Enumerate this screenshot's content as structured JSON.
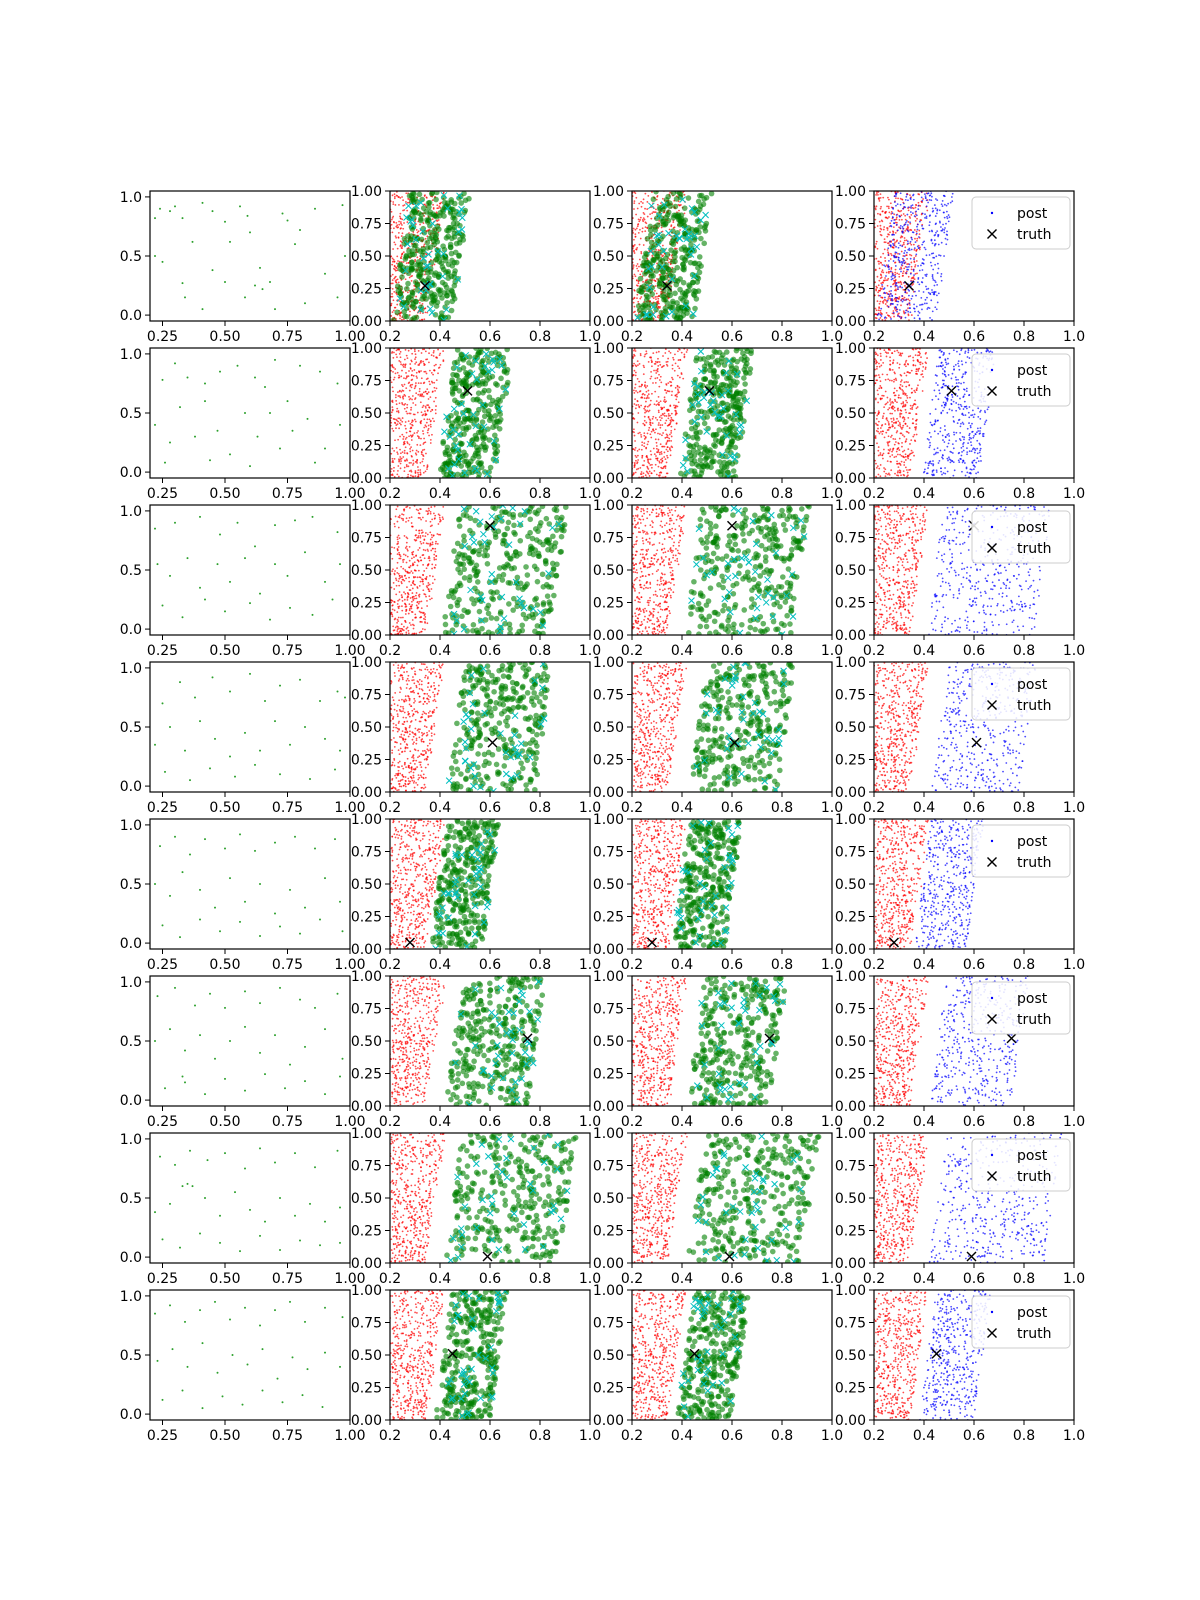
{
  "figure": {
    "grid": "8x4",
    "colors": {
      "prior": "#2ca02c",
      "red": "#ff0000",
      "green": "#008000",
      "cyan": "#00bfbf",
      "blue": "#0000ff",
      "truth": "#000000"
    }
  },
  "legend": {
    "post": "post",
    "truth": "truth"
  },
  "chart_data": [
    {
      "row": 0,
      "truth": [
        0.34,
        0.27
      ],
      "band": [
        0.21,
        0.45
      ],
      "prior_points": [
        [
          0.22,
          0.82
        ],
        [
          0.24,
          0.9
        ],
        [
          0.28,
          0.88
        ],
        [
          0.3,
          0.92
        ],
        [
          0.33,
          0.82
        ],
        [
          0.41,
          0.95
        ],
        [
          0.45,
          0.88
        ],
        [
          0.5,
          0.79
        ],
        [
          0.56,
          0.92
        ],
        [
          0.59,
          0.84
        ],
        [
          0.22,
          0.5
        ],
        [
          0.25,
          0.45
        ],
        [
          0.34,
          0.15
        ],
        [
          0.33,
          0.27
        ],
        [
          0.41,
          0.05
        ],
        [
          0.45,
          0.38
        ],
        [
          0.5,
          0.28
        ],
        [
          0.52,
          0.62
        ],
        [
          0.58,
          0.15
        ],
        [
          0.62,
          0.25
        ],
        [
          0.65,
          0.22
        ],
        [
          0.68,
          0.28
        ],
        [
          0.7,
          0.05
        ],
        [
          0.73,
          0.86
        ],
        [
          0.75,
          0.8
        ],
        [
          0.78,
          0.6
        ],
        [
          0.82,
          0.1
        ],
        [
          0.86,
          0.9
        ],
        [
          0.9,
          0.35
        ],
        [
          0.95,
          0.15
        ],
        [
          0.98,
          0.5
        ],
        [
          0.64,
          0.4
        ],
        [
          0.37,
          0.62
        ],
        [
          0.8,
          0.72
        ],
        [
          0.97,
          0.93
        ],
        [
          0.6,
          0.7
        ]
      ]
    },
    {
      "row": 1,
      "truth": [
        0.51,
        0.67
      ],
      "band": [
        0.39,
        0.62
      ],
      "prior_points": [
        [
          0.25,
          0.78
        ],
        [
          0.3,
          0.92
        ],
        [
          0.35,
          0.8
        ],
        [
          0.42,
          0.75
        ],
        [
          0.48,
          0.85
        ],
        [
          0.55,
          0.9
        ],
        [
          0.62,
          0.8
        ],
        [
          0.66,
          0.72
        ],
        [
          0.7,
          0.95
        ],
        [
          0.75,
          0.6
        ],
        [
          0.8,
          0.9
        ],
        [
          0.88,
          0.85
        ],
        [
          0.95,
          0.75
        ],
        [
          0.22,
          0.4
        ],
        [
          0.28,
          0.25
        ],
        [
          0.32,
          0.55
        ],
        [
          0.38,
          0.3
        ],
        [
          0.42,
          0.6
        ],
        [
          0.47,
          0.35
        ],
        [
          0.52,
          0.15
        ],
        [
          0.58,
          0.5
        ],
        [
          0.63,
          0.3
        ],
        [
          0.68,
          0.5
        ],
        [
          0.72,
          0.2
        ],
        [
          0.77,
          0.35
        ],
        [
          0.83,
          0.45
        ],
        [
          0.9,
          0.2
        ],
        [
          0.96,
          0.4
        ],
        [
          0.26,
          0.08
        ],
        [
          0.44,
          0.1
        ],
        [
          0.6,
          0.05
        ],
        [
          0.86,
          0.08
        ]
      ]
    },
    {
      "row": 2,
      "truth": [
        0.6,
        0.84
      ],
      "band": [
        0.41,
        0.84
      ],
      "prior_points": [
        [
          0.22,
          0.85
        ],
        [
          0.3,
          0.9
        ],
        [
          0.4,
          0.95
        ],
        [
          0.48,
          0.8
        ],
        [
          0.55,
          0.9
        ],
        [
          0.62,
          0.7
        ],
        [
          0.7,
          0.88
        ],
        [
          0.78,
          0.92
        ],
        [
          0.85,
          0.95
        ],
        [
          0.95,
          0.82
        ],
        [
          0.23,
          0.55
        ],
        [
          0.28,
          0.45
        ],
        [
          0.35,
          0.6
        ],
        [
          0.4,
          0.35
        ],
        [
          0.47,
          0.55
        ],
        [
          0.52,
          0.4
        ],
        [
          0.58,
          0.6
        ],
        [
          0.64,
          0.3
        ],
        [
          0.7,
          0.55
        ],
        [
          0.75,
          0.45
        ],
        [
          0.82,
          0.65
        ],
        [
          0.9,
          0.4
        ],
        [
          0.96,
          0.55
        ],
        [
          0.25,
          0.2
        ],
        [
          0.33,
          0.1
        ],
        [
          0.42,
          0.25
        ],
        [
          0.5,
          0.15
        ],
        [
          0.6,
          0.22
        ],
        [
          0.68,
          0.08
        ],
        [
          0.76,
          0.18
        ],
        [
          0.85,
          0.12
        ],
        [
          0.93,
          0.25
        ]
      ]
    },
    {
      "row": 3,
      "truth": [
        0.61,
        0.38
      ],
      "band": [
        0.43,
        0.78
      ],
      "prior_points": [
        [
          0.25,
          0.7
        ],
        [
          0.32,
          0.88
        ],
        [
          0.38,
          0.75
        ],
        [
          0.45,
          0.92
        ],
        [
          0.52,
          0.8
        ],
        [
          0.6,
          0.95
        ],
        [
          0.66,
          0.72
        ],
        [
          0.72,
          0.85
        ],
        [
          0.8,
          0.9
        ],
        [
          0.88,
          0.72
        ],
        [
          0.95,
          0.8
        ],
        [
          0.98,
          0.75
        ],
        [
          0.22,
          0.35
        ],
        [
          0.28,
          0.5
        ],
        [
          0.34,
          0.3
        ],
        [
          0.4,
          0.55
        ],
        [
          0.46,
          0.4
        ],
        [
          0.52,
          0.25
        ],
        [
          0.58,
          0.45
        ],
        [
          0.64,
          0.3
        ],
        [
          0.7,
          0.55
        ],
        [
          0.76,
          0.35
        ],
        [
          0.82,
          0.5
        ],
        [
          0.9,
          0.4
        ],
        [
          0.96,
          0.3
        ],
        [
          0.26,
          0.12
        ],
        [
          0.36,
          0.05
        ],
        [
          0.44,
          0.15
        ],
        [
          0.54,
          0.08
        ],
        [
          0.62,
          0.18
        ],
        [
          0.72,
          0.1
        ],
        [
          0.84,
          0.06
        ],
        [
          0.94,
          0.14
        ]
      ]
    },
    {
      "row": 4,
      "truth": [
        0.28,
        0.05
      ],
      "band": [
        0.36,
        0.57
      ],
      "prior_points": [
        [
          0.24,
          0.82
        ],
        [
          0.3,
          0.9
        ],
        [
          0.36,
          0.75
        ],
        [
          0.42,
          0.88
        ],
        [
          0.5,
          0.8
        ],
        [
          0.56,
          0.92
        ],
        [
          0.62,
          0.78
        ],
        [
          0.7,
          0.85
        ],
        [
          0.78,
          0.9
        ],
        [
          0.86,
          0.8
        ],
        [
          0.94,
          0.88
        ],
        [
          0.22,
          0.5
        ],
        [
          0.28,
          0.4
        ],
        [
          0.33,
          0.6
        ],
        [
          0.4,
          0.45
        ],
        [
          0.46,
          0.3
        ],
        [
          0.52,
          0.55
        ],
        [
          0.58,
          0.35
        ],
        [
          0.64,
          0.5
        ],
        [
          0.7,
          0.25
        ],
        [
          0.76,
          0.45
        ],
        [
          0.82,
          0.3
        ],
        [
          0.9,
          0.55
        ],
        [
          0.96,
          0.35
        ],
        [
          0.25,
          0.15
        ],
        [
          0.32,
          0.05
        ],
        [
          0.4,
          0.2
        ],
        [
          0.48,
          0.1
        ],
        [
          0.56,
          0.18
        ],
        [
          0.64,
          0.06
        ],
        [
          0.72,
          0.14
        ],
        [
          0.8,
          0.08
        ],
        [
          0.88,
          0.2
        ],
        [
          0.97,
          0.1
        ]
      ]
    },
    {
      "row": 5,
      "truth": [
        0.75,
        0.52
      ],
      "band": [
        0.42,
        0.75
      ],
      "prior_points": [
        [
          0.23,
          0.88
        ],
        [
          0.3,
          0.95
        ],
        [
          0.38,
          0.8
        ],
        [
          0.44,
          0.9
        ],
        [
          0.5,
          0.78
        ],
        [
          0.58,
          0.92
        ],
        [
          0.64,
          0.82
        ],
        [
          0.72,
          0.95
        ],
        [
          0.8,
          0.85
        ],
        [
          0.86,
          0.78
        ],
        [
          0.95,
          0.9
        ],
        [
          0.22,
          0.5
        ],
        [
          0.28,
          0.6
        ],
        [
          0.34,
          0.42
        ],
        [
          0.4,
          0.55
        ],
        [
          0.46,
          0.35
        ],
        [
          0.52,
          0.5
        ],
        [
          0.58,
          0.62
        ],
        [
          0.64,
          0.4
        ],
        [
          0.7,
          0.55
        ],
        [
          0.76,
          0.3
        ],
        [
          0.82,
          0.45
        ],
        [
          0.9,
          0.6
        ],
        [
          0.97,
          0.35
        ],
        [
          0.26,
          0.1
        ],
        [
          0.33,
          0.2
        ],
        [
          0.34,
          0.15
        ],
        [
          0.42,
          0.05
        ],
        [
          0.5,
          0.18
        ],
        [
          0.58,
          0.08
        ],
        [
          0.66,
          0.22
        ],
        [
          0.74,
          0.1
        ],
        [
          0.82,
          0.16
        ],
        [
          0.9,
          0.05
        ],
        [
          0.96,
          0.2
        ]
      ]
    },
    {
      "row": 6,
      "truth": [
        0.59,
        0.05
      ],
      "band": [
        0.42,
        0.88
      ],
      "prior_points": [
        [
          0.24,
          0.85
        ],
        [
          0.3,
          0.78
        ],
        [
          0.36,
          0.9
        ],
        [
          0.43,
          0.82
        ],
        [
          0.5,
          0.88
        ],
        [
          0.58,
          0.75
        ],
        [
          0.64,
          0.92
        ],
        [
          0.7,
          0.8
        ],
        [
          0.78,
          0.88
        ],
        [
          0.86,
          0.76
        ],
        [
          0.95,
          0.9
        ],
        [
          0.22,
          0.38
        ],
        [
          0.28,
          0.45
        ],
        [
          0.33,
          0.6
        ],
        [
          0.35,
          0.62
        ],
        [
          0.37,
          0.6
        ],
        [
          0.42,
          0.5
        ],
        [
          0.48,
          0.35
        ],
        [
          0.54,
          0.55
        ],
        [
          0.6,
          0.4
        ],
        [
          0.66,
          0.3
        ],
        [
          0.72,
          0.5
        ],
        [
          0.78,
          0.35
        ],
        [
          0.84,
          0.45
        ],
        [
          0.9,
          0.3
        ],
        [
          0.96,
          0.42
        ],
        [
          0.25,
          0.15
        ],
        [
          0.32,
          0.08
        ],
        [
          0.4,
          0.2
        ],
        [
          0.48,
          0.12
        ],
        [
          0.56,
          0.05
        ],
        [
          0.64,
          0.18
        ],
        [
          0.72,
          0.06
        ],
        [
          0.8,
          0.14
        ],
        [
          0.88,
          0.1
        ],
        [
          0.96,
          0.12
        ]
      ]
    },
    {
      "row": 7,
      "truth": [
        0.45,
        0.51
      ],
      "band": [
        0.38,
        0.6
      ],
      "prior_points": [
        [
          0.22,
          0.85
        ],
        [
          0.28,
          0.92
        ],
        [
          0.34,
          0.78
        ],
        [
          0.4,
          0.88
        ],
        [
          0.46,
          0.95
        ],
        [
          0.52,
          0.8
        ],
        [
          0.58,
          0.9
        ],
        [
          0.64,
          0.75
        ],
        [
          0.7,
          0.88
        ],
        [
          0.76,
          0.95
        ],
        [
          0.82,
          0.78
        ],
        [
          0.9,
          0.9
        ],
        [
          0.97,
          0.82
        ],
        [
          0.23,
          0.45
        ],
        [
          0.29,
          0.55
        ],
        [
          0.35,
          0.4
        ],
        [
          0.41,
          0.6
        ],
        [
          0.47,
          0.35
        ],
        [
          0.53,
          0.5
        ],
        [
          0.59,
          0.42
        ],
        [
          0.65,
          0.55
        ],
        [
          0.71,
          0.3
        ],
        [
          0.77,
          0.48
        ],
        [
          0.83,
          0.38
        ],
        [
          0.9,
          0.52
        ],
        [
          0.96,
          0.4
        ],
        [
          0.25,
          0.12
        ],
        [
          0.33,
          0.2
        ],
        [
          0.41,
          0.05
        ],
        [
          0.49,
          0.15
        ],
        [
          0.57,
          0.08
        ],
        [
          0.65,
          0.2
        ],
        [
          0.73,
          0.1
        ],
        [
          0.81,
          0.16
        ],
        [
          0.89,
          0.06
        ]
      ]
    }
  ]
}
